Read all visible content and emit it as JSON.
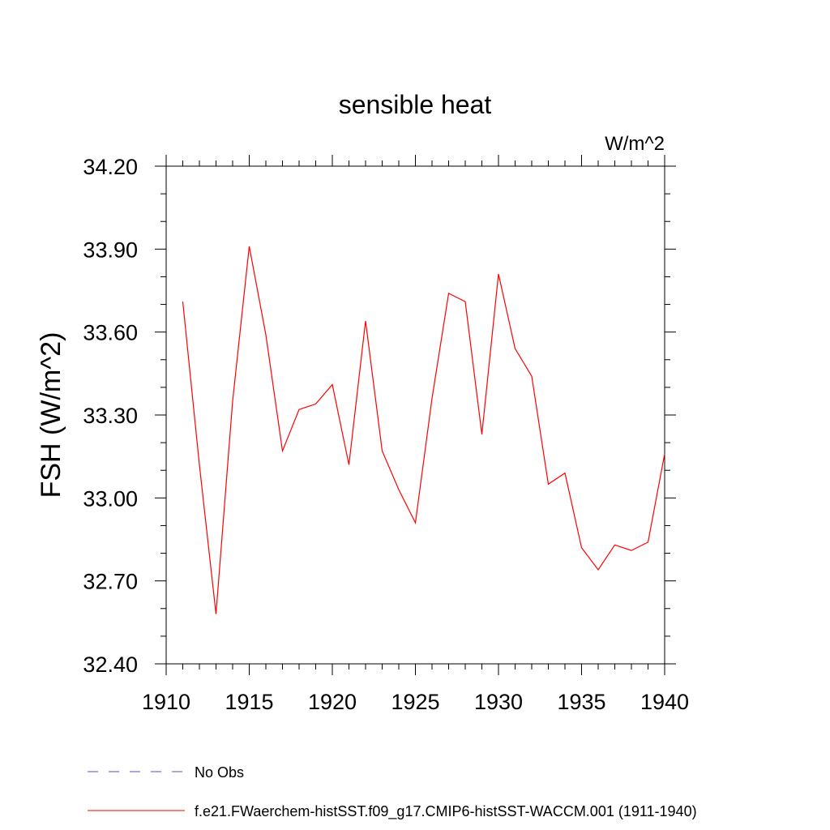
{
  "chart_data": {
    "type": "line",
    "title": "sensible heat",
    "units": "W/m^2",
    "ylabel": "FSH  (W/m^2)",
    "xlabel": "",
    "xlim": [
      1910,
      1940
    ],
    "ylim": [
      32.4,
      34.2
    ],
    "x_ticks": [
      "1910",
      "1915",
      "1920",
      "1925",
      "1930",
      "1935",
      "1940"
    ],
    "y_ticks": [
      "32.40",
      "32.70",
      "33.00",
      "33.30",
      "33.60",
      "33.90",
      "34.20"
    ],
    "series": [
      {
        "name": "f.e21.FWaerchem-histSST.f09_g17.CMIP6-histSST-WACCM.001 (1911-1940)",
        "color": "#ff0000",
        "x": [
          1911,
          1912,
          1913,
          1914,
          1915,
          1916,
          1917,
          1918,
          1919,
          1920,
          1921,
          1922,
          1923,
          1924,
          1925,
          1926,
          1927,
          1928,
          1929,
          1930,
          1931,
          1932,
          1933,
          1934,
          1935,
          1936,
          1937,
          1938,
          1939,
          1940
        ],
        "y": [
          33.71,
          33.12,
          32.58,
          33.35,
          33.91,
          33.59,
          33.17,
          33.32,
          33.34,
          33.41,
          33.12,
          33.64,
          33.17,
          33.03,
          32.91,
          33.36,
          33.74,
          33.71,
          33.23,
          33.81,
          33.54,
          33.44,
          33.05,
          33.09,
          32.82,
          32.74,
          32.83,
          32.81,
          32.84,
          33.16
        ]
      }
    ],
    "legend": [
      {
        "label": "No Obs",
        "style": "dashed",
        "color": "#5a4fc8"
      },
      {
        "label": "f.e21.FWaerchem-histSST.f09_g17.CMIP6-histSST-WACCM.001 (1911-1940)",
        "style": "solid",
        "color": "#ff0000"
      }
    ],
    "legend_placement": "bottom",
    "grid": false
  }
}
